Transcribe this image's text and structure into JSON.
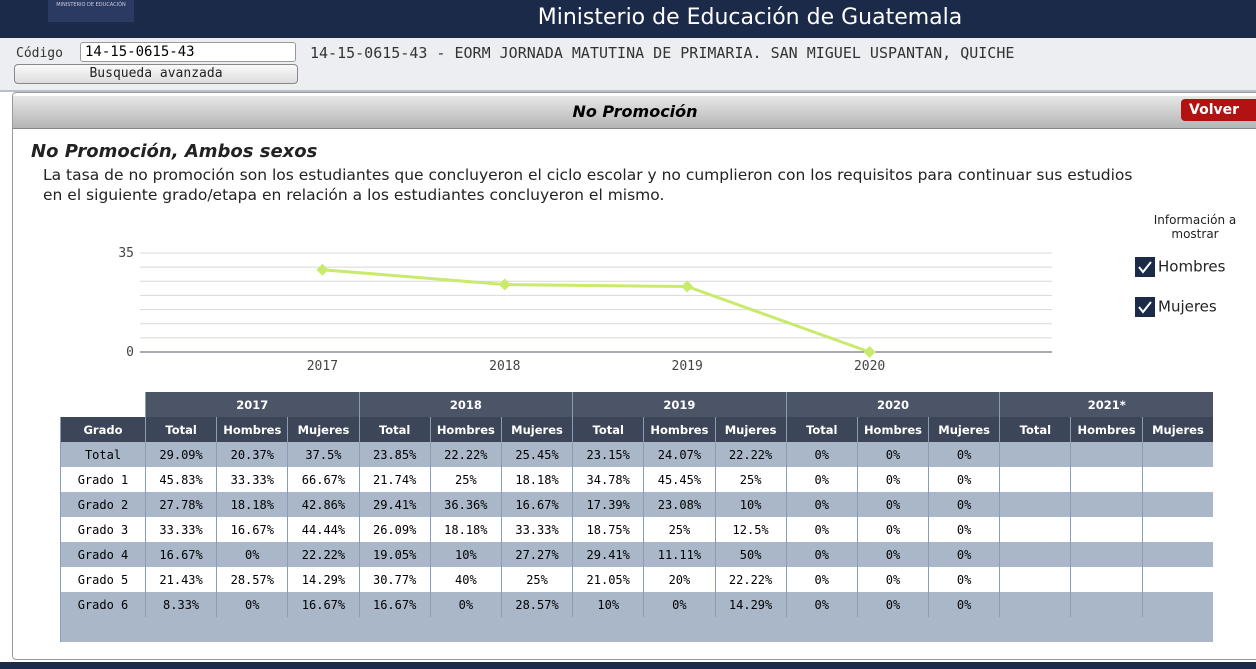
{
  "header": {
    "logo": "MINISTERIO DE EDUCACIÓN",
    "title": "Ministerio de Educación de Guatemala"
  },
  "search": {
    "label": "Código",
    "code": "14-15-0615-43",
    "school": "14-15-0615-43 - EORM JORNADA MATUTINA DE PRIMARIA. SAN MIGUEL USPANTAN, QUICHE",
    "button": "Busqueda avanzada"
  },
  "panel": {
    "title": "No Promoción",
    "back": "Volver",
    "subtitle": "No Promoción, Ambos sexos",
    "description": "La tasa de no promoción son los estudiantes que concluyeron el ciclo escolar y no cumplieron con los requisitos para continuar sus estudios en el siguiente grado/etapa en relación a los estudiantes concluyeron el mismo."
  },
  "options": {
    "title": "Información a mostrar",
    "items": [
      "Hombres",
      "Mujeres"
    ]
  },
  "chart_data": {
    "type": "line",
    "categories": [
      "2017",
      "2018",
      "2019",
      "2020"
    ],
    "values": [
      29.09,
      23.85,
      23.15,
      0
    ],
    "color": "#c9ea6c",
    "ylim": [
      0,
      35
    ],
    "yticks": [
      0,
      35
    ],
    "grid_lines": [
      5,
      10,
      15,
      20,
      25,
      30
    ]
  },
  "table": {
    "first_header": "Grado",
    "years": [
      "2017",
      "2018",
      "2019",
      "2020",
      "2021*"
    ],
    "subheaders": [
      "Total",
      "Hombres",
      "Mujeres"
    ],
    "rows": [
      {
        "label": "Total",
        "cells": [
          "29.09%",
          "20.37%",
          "37.5%",
          "23.85%",
          "22.22%",
          "25.45%",
          "23.15%",
          "24.07%",
          "22.22%",
          "0%",
          "0%",
          "0%"
        ]
      },
      {
        "label": "Grado 1",
        "cells": [
          "45.83%",
          "33.33%",
          "66.67%",
          "21.74%",
          "25%",
          "18.18%",
          "34.78%",
          "45.45%",
          "25%",
          "0%",
          "0%",
          "0%"
        ]
      },
      {
        "label": "Grado 2",
        "cells": [
          "27.78%",
          "18.18%",
          "42.86%",
          "29.41%",
          "36.36%",
          "16.67%",
          "17.39%",
          "23.08%",
          "10%",
          "0%",
          "0%",
          "0%"
        ]
      },
      {
        "label": "Grado 3",
        "cells": [
          "33.33%",
          "16.67%",
          "44.44%",
          "26.09%",
          "18.18%",
          "33.33%",
          "18.75%",
          "25%",
          "12.5%",
          "0%",
          "0%",
          "0%"
        ]
      },
      {
        "label": "Grado 4",
        "cells": [
          "16.67%",
          "0%",
          "22.22%",
          "19.05%",
          "10%",
          "27.27%",
          "29.41%",
          "11.11%",
          "50%",
          "0%",
          "0%",
          "0%"
        ]
      },
      {
        "label": "Grado 5",
        "cells": [
          "21.43%",
          "28.57%",
          "14.29%",
          "30.77%",
          "40%",
          "25%",
          "21.05%",
          "20%",
          "22.22%",
          "0%",
          "0%",
          "0%"
        ]
      },
      {
        "label": "Grado 6",
        "cells": [
          "8.33%",
          "0%",
          "16.67%",
          "16.67%",
          "0%",
          "28.57%",
          "10%",
          "0%",
          "14.29%",
          "0%",
          "0%",
          "0%"
        ]
      }
    ]
  }
}
